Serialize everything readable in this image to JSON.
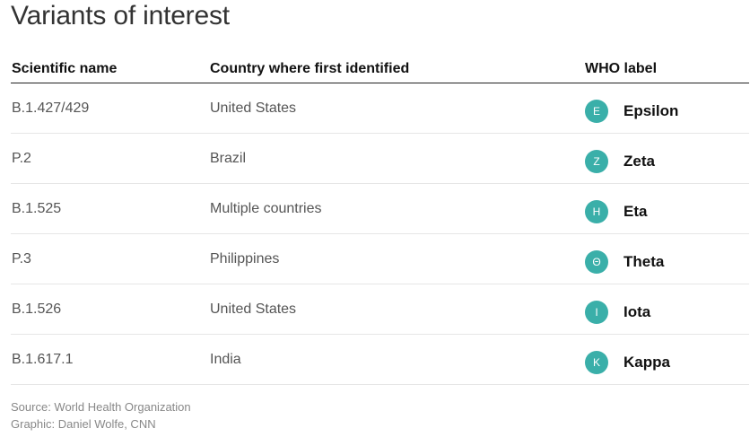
{
  "title": "Variants of interest",
  "columns": {
    "scientific_name": "Scientific name",
    "country": "Country where first identified",
    "who_label": "WHO label"
  },
  "rows": [
    {
      "scientific": "B.1.427/429",
      "country": "United States",
      "badge": "Ε",
      "who": "Epsilon"
    },
    {
      "scientific": "P.2",
      "country": "Brazil",
      "badge": "Ζ",
      "who": "Zeta"
    },
    {
      "scientific": "B.1.525",
      "country": "Multiple countries",
      "badge": "Η",
      "who": "Eta"
    },
    {
      "scientific": "P.3",
      "country": "Philippines",
      "badge": "Θ",
      "who": "Theta"
    },
    {
      "scientific": "B.1.526",
      "country": "United States",
      "badge": "Ι",
      "who": "Iota"
    },
    {
      "scientific": "B.1.617.1",
      "country": "India",
      "badge": "Κ",
      "who": "Kappa"
    }
  ],
  "footer": {
    "source": "Source: World Health Organization",
    "graphic": "Graphic: Daniel Wolfe, CNN"
  },
  "colors": {
    "badge": "#3aafa9"
  }
}
